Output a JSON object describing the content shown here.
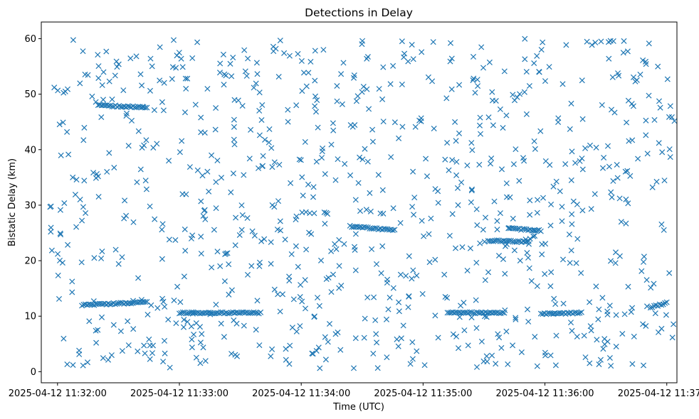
{
  "chart_data": {
    "type": "scatter",
    "title": "Detections in Delay",
    "xlabel": "Time (UTC)",
    "ylabel": "Bistatic Delay (km)",
    "marker": "x",
    "color": "#1f77b4",
    "grid": false,
    "legend": "none",
    "x_axis": {
      "type": "time",
      "start": "2025-04-12T11:31:52",
      "end": "2025-04-12T11:37:05",
      "ticks": [
        "2025-04-12 11:32:00",
        "2025-04-12 11:33:00",
        "2025-04-12 11:34:00",
        "2025-04-12 11:35:00",
        "2025-04-12 11:36:00",
        "2025-04-12 11:37:00"
      ]
    },
    "y_axis": {
      "range": [
        -2,
        63
      ],
      "ticks": [
        "0",
        "10",
        "20",
        "30",
        "40",
        "50",
        "60"
      ]
    },
    "tracks": [
      {
        "t0": "2025-04-12T11:32:12",
        "t1": "2025-04-12T11:32:44",
        "y0": 12.0,
        "y1": 12.5
      },
      {
        "t0": "2025-04-12T11:32:20",
        "t1": "2025-04-12T11:32:44",
        "y0": 48.0,
        "y1": 47.6
      },
      {
        "t0": "2025-04-12T11:33:00",
        "t1": "2025-04-12T11:33:40",
        "y0": 10.6,
        "y1": 10.6
      },
      {
        "t0": "2025-04-12T11:34:24",
        "t1": "2025-04-12T11:34:46",
        "y0": 26.2,
        "y1": 25.5
      },
      {
        "t0": "2025-04-12T11:35:12",
        "t1": "2025-04-12T11:35:40",
        "y0": 10.6,
        "y1": 10.6
      },
      {
        "t0": "2025-04-12T11:35:32",
        "t1": "2025-04-12T11:35:52",
        "y0": 23.6,
        "y1": 23.4
      },
      {
        "t0": "2025-04-12T11:35:42",
        "t1": "2025-04-12T11:35:58",
        "y0": 25.8,
        "y1": 25.4
      },
      {
        "t0": "2025-04-12T11:35:58",
        "t1": "2025-04-12T11:36:18",
        "y0": 10.4,
        "y1": 10.6
      },
      {
        "t0": "2025-04-12T11:36:52",
        "t1": "2025-04-12T11:37:00",
        "y0": 11.6,
        "y1": 12.4
      }
    ],
    "background_points": 900
  }
}
